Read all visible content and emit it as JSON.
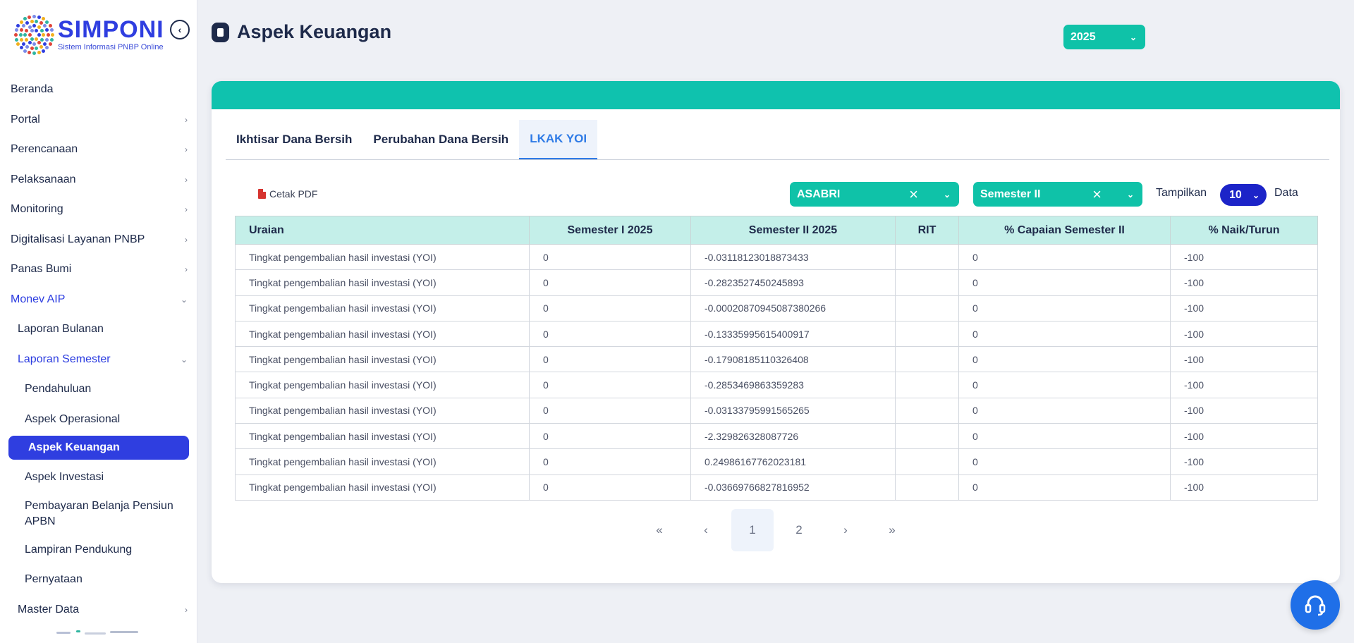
{
  "app": {
    "logo_title": "SIMPONI",
    "logo_subtitle": "Sistem Informasi PNBP Online"
  },
  "sidebar": {
    "items": [
      {
        "label": "Beranda",
        "level": 0,
        "chevron": ""
      },
      {
        "label": "Portal",
        "level": 0,
        "chevron": "›"
      },
      {
        "label": "Perencanaan",
        "level": 0,
        "chevron": "›"
      },
      {
        "label": "Pelaksanaan",
        "level": 0,
        "chevron": "›"
      },
      {
        "label": "Monitoring",
        "level": 0,
        "chevron": "›"
      },
      {
        "label": "Digitalisasi Layanan PNBP",
        "level": 0,
        "chevron": "›"
      },
      {
        "label": "Panas Bumi",
        "level": 0,
        "chevron": "›"
      },
      {
        "label": "Monev AIP",
        "level": 0,
        "chevron": "⌄"
      },
      {
        "label": "Laporan Bulanan",
        "level": 1,
        "chevron": ""
      },
      {
        "label": "Laporan Semester",
        "level": 1,
        "chevron": "⌄"
      },
      {
        "label": "Pendahuluan",
        "level": 2,
        "chevron": ""
      },
      {
        "label": "Aspek Operasional",
        "level": 2,
        "chevron": ""
      },
      {
        "label": "Aspek Keuangan",
        "level": 2,
        "chevron": ""
      },
      {
        "label": "Aspek Investasi",
        "level": 2,
        "chevron": ""
      },
      {
        "label": "Pembayaran Belanja Pensiun APBN",
        "level": 2,
        "chevron": ""
      },
      {
        "label": "Lampiran Pendukung",
        "level": 2,
        "chevron": ""
      },
      {
        "label": "Pernyataan",
        "level": 2,
        "chevron": ""
      },
      {
        "label": "Master Data",
        "level": 1,
        "chevron": "›"
      }
    ],
    "active_label": "Aspek Keuangan"
  },
  "header": {
    "title": "Aspek Keuangan",
    "year_selected": "2025"
  },
  "tabs": [
    {
      "label": "Ikhtisar Dana Bersih",
      "active": false
    },
    {
      "label": "Perubahan Dana Bersih",
      "active": false
    },
    {
      "label": "LKAK YOI",
      "active": true
    }
  ],
  "toolbar": {
    "pdf_label": "Cetak PDF",
    "entity_selected": "ASABRI",
    "semester_selected": "Semester II",
    "show_label": "Tampilkan",
    "page_size": "10",
    "data_label": "Data"
  },
  "table": {
    "columns": [
      "Uraian",
      "Semester I 2025",
      "Semester II 2025",
      "RIT",
      "% Capaian Semester II",
      "% Naik/Turun"
    ],
    "rows": [
      [
        "Tingkat pengembalian hasil investasi (YOI)",
        "0",
        "-0.03118123018873433",
        "",
        "0",
        "-100"
      ],
      [
        "Tingkat pengembalian hasil investasi (YOI)",
        "0",
        "-0.2823527450245893",
        "",
        "0",
        "-100"
      ],
      [
        "Tingkat pengembalian hasil investasi (YOI)",
        "0",
        "-0.00020870945087380266",
        "",
        "0",
        "-100"
      ],
      [
        "Tingkat pengembalian hasil investasi (YOI)",
        "0",
        "-0.13335995615400917",
        "",
        "0",
        "-100"
      ],
      [
        "Tingkat pengembalian hasil investasi (YOI)",
        "0",
        "-0.17908185110326408",
        "",
        "0",
        "-100"
      ],
      [
        "Tingkat pengembalian hasil investasi (YOI)",
        "0",
        "-0.2853469863359283",
        "",
        "0",
        "-100"
      ],
      [
        "Tingkat pengembalian hasil investasi (YOI)",
        "0",
        "-0.03133795991565265",
        "",
        "0",
        "-100"
      ],
      [
        "Tingkat pengembalian hasil investasi (YOI)",
        "0",
        "-2.329826328087726",
        "",
        "0",
        "-100"
      ],
      [
        "Tingkat pengembalian hasil investasi (YOI)",
        "0",
        "0.24986167762023181",
        "",
        "0",
        "-100"
      ],
      [
        "Tingkat pengembalian hasil investasi (YOI)",
        "0",
        "-0.03669766827816952",
        "",
        "0",
        "-100"
      ]
    ]
  },
  "pagination": {
    "first": "«",
    "prev": "‹",
    "pages": [
      "1",
      "2"
    ],
    "current": "1",
    "next": "›",
    "last": "»"
  },
  "colors": {
    "primary": "#2f3ee0",
    "teal": "#0fc2a8",
    "header_row": "#c4efe9",
    "help_button": "#1f6fe8"
  },
  "icons": [
    "collapse-icon",
    "document-icon",
    "pdf-icon",
    "clear-icon",
    "chevron-down-icon",
    "headset-icon"
  ]
}
